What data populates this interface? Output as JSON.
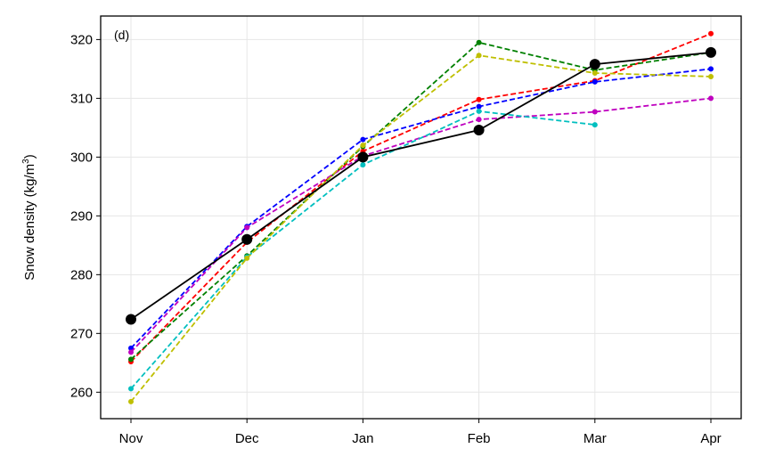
{
  "chart_data": {
    "type": "line",
    "panel_label": "(d)",
    "xlabel": "",
    "ylabel": "Snow density (kg/m",
    "ylabel_sup": "3",
    "ylabel_end": ")",
    "categories": [
      "Nov",
      "Dec",
      "Jan",
      "Feb",
      "Mar",
      "Apr"
    ],
    "ylim": [
      255.5,
      324
    ],
    "yticks": [
      260,
      270,
      280,
      290,
      300,
      310,
      320
    ],
    "grid": true,
    "series": [
      {
        "name": "red",
        "color": "#ff0000",
        "dashed": true,
        "values": [
          265.2,
          285.5,
          301.0,
          309.8,
          313.0,
          321.0
        ]
      },
      {
        "name": "green",
        "color": "#008000",
        "dashed": true,
        "values": [
          265.6,
          283.2,
          301.8,
          319.5,
          314.8,
          317.8
        ]
      },
      {
        "name": "blue",
        "color": "#0000ff",
        "dashed": true,
        "values": [
          267.5,
          288.2,
          303.0,
          308.6,
          312.8,
          315.0
        ]
      },
      {
        "name": "magenta",
        "color": "#bf00bf",
        "dashed": true,
        "values": [
          266.8,
          288.0,
          300.2,
          306.4,
          307.7,
          310.0
        ]
      },
      {
        "name": "cyan",
        "color": "#00bfbf",
        "dashed": true,
        "values": [
          260.6,
          283.0,
          298.7,
          307.8,
          305.5,
          null
        ]
      },
      {
        "name": "yellow",
        "color": "#bfbf00",
        "dashed": true,
        "values": [
          258.4,
          282.8,
          302.0,
          317.3,
          314.3,
          313.7
        ]
      },
      {
        "name": "mean",
        "color": "#000000",
        "dashed": false,
        "values": [
          272.4,
          286.0,
          300.0,
          304.6,
          315.8,
          317.8
        ]
      }
    ]
  }
}
